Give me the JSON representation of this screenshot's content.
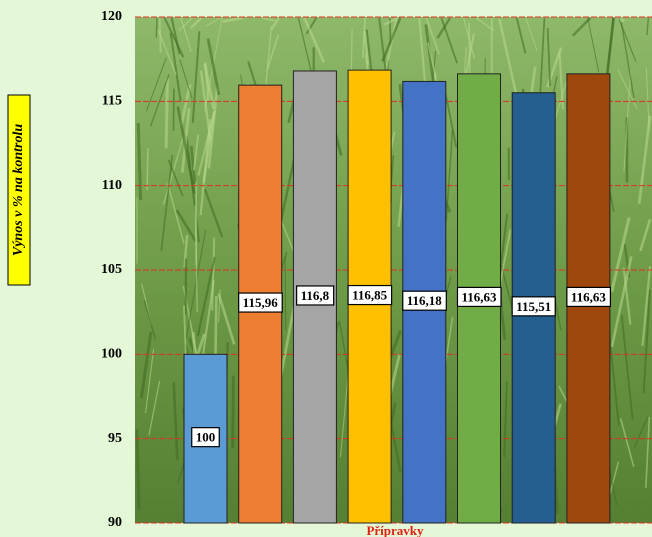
{
  "chart_data": {
    "type": "bar",
    "y_label": "Výnos v % na kontrolu",
    "x_label": "Přípravky",
    "categories": [
      null,
      null,
      null,
      null,
      null,
      null,
      null,
      null
    ],
    "values": [
      100,
      115.96,
      116.8,
      116.85,
      116.18,
      116.63,
      115.51,
      116.63
    ],
    "value_labels": [
      "100",
      "115,96",
      "116,8",
      "116,85",
      "116,18",
      "116,63",
      "115,51",
      "116,63"
    ],
    "colors": [
      "#5b9bd5",
      "#ed7d31",
      "#a5a5a5",
      "#ffc000",
      "#4472c4",
      "#70ad47",
      "#255e91",
      "#9e480e"
    ],
    "ylim": [
      90,
      120
    ],
    "yticks": [
      90,
      95,
      100,
      105,
      110,
      115,
      120
    ],
    "grid": true
  }
}
